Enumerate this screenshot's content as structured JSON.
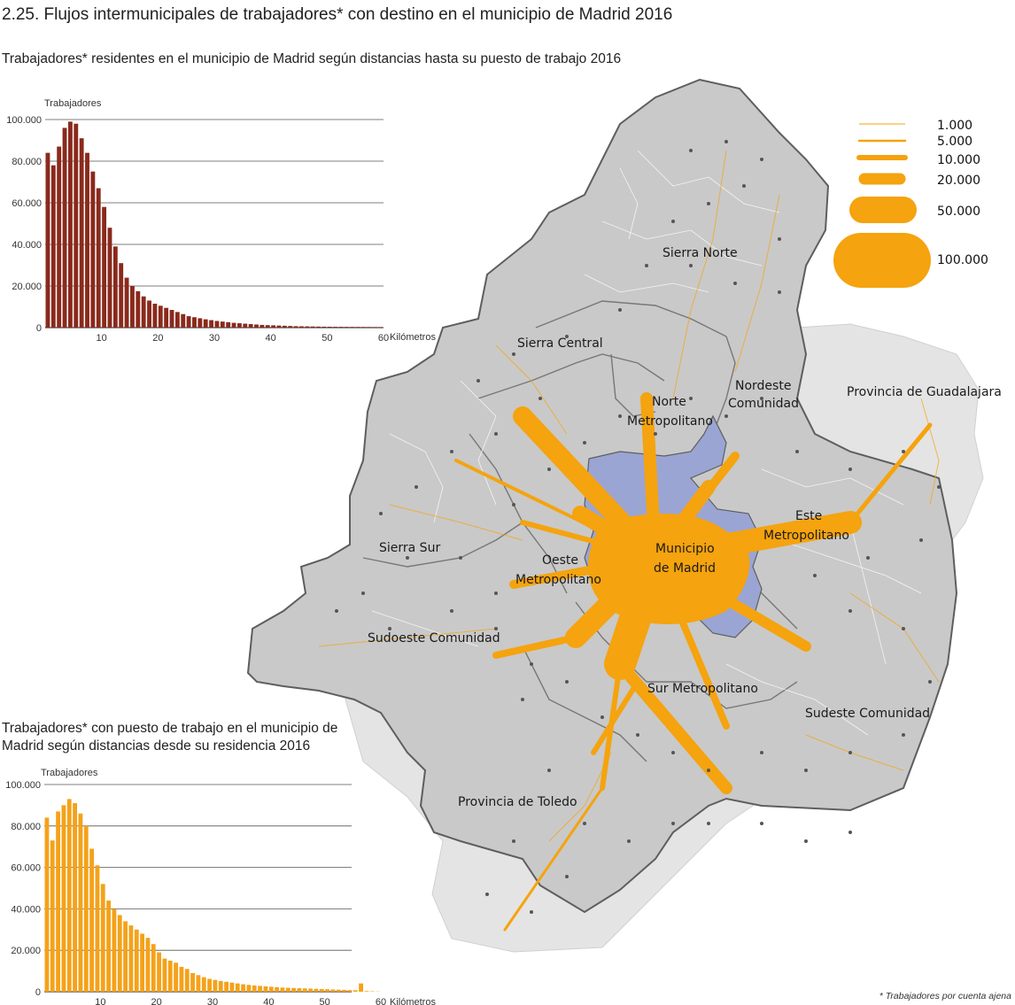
{
  "title": "2.25. Flujos intermunicipales de trabajadores* con destino en el municipio de Madrid 2016",
  "footnote": "* Trabajadores por cuenta ajena",
  "colors": {
    "residence_chart": "#8a2a1c",
    "workplace_chart": "#f4a21a",
    "flow": "#f5a30e",
    "region_fill": "#c9c9c9",
    "outer_fill": "#e4e4e4",
    "capital_fill": "#9aa5d4",
    "border": "#6a6a6a"
  },
  "chart_residence": {
    "subtitle": "Trabajadores* residentes en el municipio de Madrid según distancias hasta su puesto de trabajo 2016",
    "ylabel": "Trabajadores",
    "xlabel": "Kilómetros",
    "ytick_labels": [
      "100.000",
      "80.000",
      "60.000",
      "40.000",
      "20.000",
      "0"
    ],
    "xtick_labels": [
      "10",
      "20",
      "30",
      "40",
      "50",
      "60"
    ]
  },
  "chart_workplace": {
    "subtitle": "Trabajadores* con puesto de trabajo en el municipio de Madrid según distancias desde su residencia 2016",
    "ylabel": "Trabajadores",
    "xlabel": "Kilómetros",
    "ytick_labels": [
      "100.000",
      "80.000",
      "60.000",
      "40.000",
      "20.000",
      "0"
    ],
    "xtick_labels": [
      "10",
      "20",
      "30",
      "40",
      "50",
      "60"
    ]
  },
  "chart_data": [
    {
      "type": "bar",
      "title": "Trabajadores* residentes en el municipio de Madrid según distancias hasta su puesto de trabajo 2016",
      "xlabel": "Kilómetros",
      "ylabel": "Trabajadores",
      "ylim": [
        0,
        100000
      ],
      "xlim": [
        0,
        60
      ],
      "x": [
        1,
        2,
        3,
        4,
        5,
        6,
        7,
        8,
        9,
        10,
        11,
        12,
        13,
        14,
        15,
        16,
        17,
        18,
        19,
        20,
        21,
        22,
        23,
        24,
        25,
        26,
        27,
        28,
        29,
        30,
        31,
        32,
        33,
        34,
        35,
        36,
        37,
        38,
        39,
        40,
        41,
        42,
        43,
        44,
        45,
        46,
        47,
        48,
        49,
        50,
        51,
        52,
        53,
        54,
        55,
        56,
        57,
        58,
        59,
        60
      ],
      "values": [
        84000,
        78000,
        87000,
        96000,
        99000,
        98000,
        91000,
        84000,
        75000,
        67000,
        58000,
        48000,
        39000,
        31000,
        24000,
        20000,
        17500,
        15000,
        13000,
        11500,
        10500,
        9500,
        8500,
        7500,
        6500,
        5500,
        5000,
        4500,
        4000,
        3600,
        3200,
        2900,
        2600,
        2300,
        2100,
        1900,
        1700,
        1500,
        1300,
        1200,
        1100,
        1000,
        900,
        800,
        700,
        650,
        600,
        550,
        500,
        450,
        420,
        400,
        380,
        360,
        340,
        320,
        300,
        280,
        260,
        240
      ]
    },
    {
      "type": "bar",
      "title": "Trabajadores* con puesto de trabajo en el municipio de Madrid según distancias desde su residencia 2016",
      "xlabel": "Kilómetros",
      "ylabel": "Trabajadores",
      "ylim": [
        0,
        100000
      ],
      "xlim": [
        0,
        60
      ],
      "x": [
        1,
        2,
        3,
        4,
        5,
        6,
        7,
        8,
        9,
        10,
        11,
        12,
        13,
        14,
        15,
        16,
        17,
        18,
        19,
        20,
        21,
        22,
        23,
        24,
        25,
        26,
        27,
        28,
        29,
        30,
        31,
        32,
        33,
        34,
        35,
        36,
        37,
        38,
        39,
        40,
        41,
        42,
        43,
        44,
        45,
        46,
        47,
        48,
        49,
        50,
        51,
        52,
        53,
        54,
        55,
        56,
        57,
        58,
        59,
        60
      ],
      "values": [
        84000,
        73000,
        87000,
        90000,
        93000,
        91000,
        86000,
        80000,
        69000,
        61000,
        52000,
        44000,
        40000,
        37000,
        34000,
        32000,
        30000,
        28000,
        26000,
        23000,
        19000,
        16000,
        15000,
        14000,
        12000,
        11000,
        9000,
        8000,
        7000,
        6200,
        5700,
        5200,
        4800,
        4400,
        4000,
        3600,
        3300,
        3000,
        2800,
        2600,
        2400,
        2200,
        2000,
        1900,
        1800,
        1700,
        1600,
        1500,
        1400,
        1300,
        1200,
        1100,
        1000,
        900,
        800,
        700,
        4000,
        300,
        200,
        100
      ]
    }
  ],
  "map": {
    "regions": [
      "Sierra Norte",
      "Sierra Central",
      "Norte\nMetropolitano",
      "Nordeste\nComunidad",
      "Provincia de Guadalajara",
      "Este\nMetropolitano",
      "Sierra Sur",
      "Oeste\nMetropolitano",
      "Municipio\nde Madrid",
      "Sudoeste Comunidad",
      "Sur Metropolitano",
      "Sudeste Comunidad",
      "Provincia de Toledo"
    ],
    "legend": [
      {
        "label": "1.000",
        "workers": 1000
      },
      {
        "label": "5.000",
        "workers": 5000
      },
      {
        "label": "10.000",
        "workers": 10000
      },
      {
        "label": "20.000",
        "workers": 20000
      },
      {
        "label": "50.000",
        "workers": 50000
      },
      {
        "label": "100.000",
        "workers": 100000
      }
    ]
  }
}
